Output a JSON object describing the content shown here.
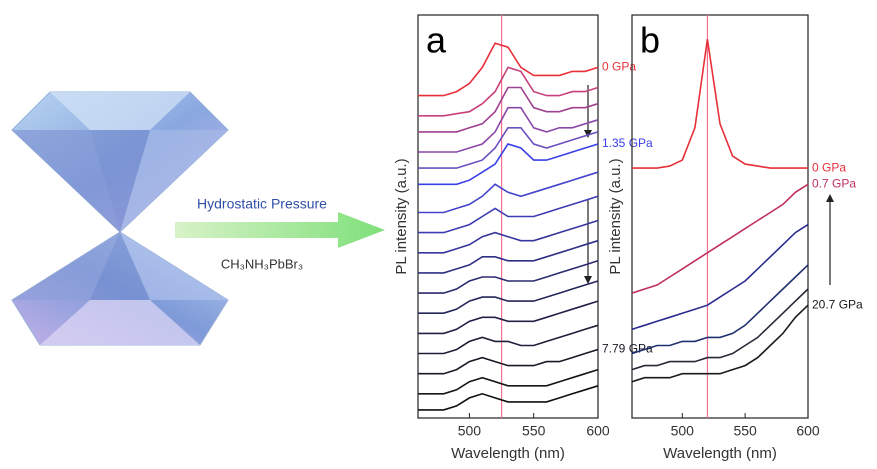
{
  "illustration": {
    "arrow_label": "Hydrostatic Pressure",
    "compound": "CH₃NH₃PbBr₃"
  },
  "chart_data": [
    {
      "type": "line",
      "panel_label": "a",
      "xlabel": "Wavelength (nm)",
      "ylabel": "PL intensity (a.u.)",
      "xlim": [
        460,
        600
      ],
      "xticks": [
        500,
        550,
        600
      ],
      "ylim": [
        0,
        100
      ],
      "vline": 525,
      "vline_color": "#f07090",
      "x": [
        460,
        470,
        480,
        490,
        500,
        510,
        520,
        530,
        540,
        550,
        560,
        570,
        580,
        590,
        600
      ],
      "series": [
        {
          "name": "0 GPa",
          "color": "#e8303a",
          "values": [
            80,
            80,
            80,
            81,
            83,
            87,
            93,
            92,
            87,
            85,
            85,
            85,
            86,
            86,
            87
          ]
        },
        {
          "color": "#c8407a",
          "values": [
            75,
            75,
            75,
            75.5,
            76,
            78,
            81,
            87,
            86,
            81,
            80,
            80,
            81,
            81,
            82
          ]
        },
        {
          "color": "#a04090",
          "values": [
            71,
            71,
            71,
            71,
            72,
            73,
            76,
            82,
            82,
            77,
            76,
            76,
            77,
            77,
            78
          ]
        },
        {
          "color": "#8a48a8",
          "values": [
            66,
            66,
            66,
            66,
            67,
            68,
            71,
            77,
            77,
            72,
            71,
            72,
            72,
            73,
            74
          ]
        },
        {
          "color": "#6a50c0",
          "values": [
            62,
            62,
            62,
            62,
            63,
            64,
            67,
            72,
            72,
            68,
            67,
            68,
            69,
            70,
            71
          ]
        },
        {
          "name": "1.35 GPa",
          "color": "#3a40e8",
          "values": [
            58,
            58,
            58,
            58,
            59,
            61,
            63,
            68,
            67,
            64,
            64,
            65,
            66,
            67,
            68
          ]
        },
        {
          "color": "#4444cc",
          "values": [
            51,
            51,
            51,
            52,
            53,
            55,
            58,
            56,
            55,
            56,
            57,
            58,
            59,
            60,
            61
          ]
        },
        {
          "color": "#3c3cb4",
          "values": [
            46,
            46,
            46,
            47,
            48,
            50,
            52,
            50,
            50,
            50,
            51,
            52,
            53,
            54,
            55
          ]
        },
        {
          "color": "#36369c",
          "values": [
            41,
            41,
            41,
            42,
            43,
            45,
            46,
            45,
            44,
            44,
            45,
            46,
            47,
            48,
            49
          ]
        },
        {
          "color": "#303084",
          "values": [
            36,
            36,
            36,
            37,
            38,
            40,
            40,
            39,
            39,
            39,
            40,
            41,
            42,
            43,
            44
          ]
        },
        {
          "color": "#2a2a6e",
          "values": [
            31,
            31,
            31,
            32,
            34,
            35,
            35,
            34,
            34,
            34,
            35,
            36,
            37,
            38,
            39
          ]
        },
        {
          "color": "#26265a",
          "values": [
            26,
            26,
            26,
            27,
            29,
            30,
            30,
            29,
            29,
            29,
            30,
            31,
            32,
            33,
            34
          ]
        },
        {
          "color": "#222246",
          "values": [
            21,
            21,
            21,
            22,
            24,
            25,
            25,
            24,
            24,
            24,
            25,
            26,
            27,
            28,
            29
          ]
        },
        {
          "color": "#1e1e36",
          "values": [
            16,
            16,
            16,
            17,
            19,
            20,
            19,
            19,
            18,
            18,
            19,
            20,
            21,
            22,
            23
          ]
        },
        {
          "name": "7.79 GPa",
          "color": "#1a1a26",
          "values": [
            11,
            11,
            11,
            12,
            14,
            15,
            14,
            13,
            13,
            13,
            14,
            14,
            15,
            16,
            17
          ]
        },
        {
          "color": "#161618",
          "values": [
            6,
            6,
            6,
            7,
            9,
            10,
            9,
            8,
            8,
            8,
            8,
            9,
            10,
            11,
            12
          ]
        },
        {
          "color": "#101010",
          "values": [
            2,
            2,
            2,
            3,
            5,
            6,
            5,
            4,
            4,
            4,
            4,
            5,
            6,
            7,
            8
          ]
        }
      ]
    },
    {
      "type": "line",
      "panel_label": "b",
      "xlabel": "Wavelength (nm)",
      "ylabel": "PL intensity (a.u.)",
      "xlim": [
        460,
        600
      ],
      "xticks": [
        500,
        550,
        600
      ],
      "ylim": [
        0,
        100
      ],
      "vline": 520,
      "vline_color": "#f07090",
      "x": [
        460,
        470,
        480,
        490,
        500,
        510,
        520,
        530,
        540,
        550,
        560,
        570,
        580,
        590,
        600
      ],
      "series": [
        {
          "name": "0 GPa",
          "color": "#e8303a",
          "values": [
            62,
            62,
            62,
            62.5,
            64,
            72,
            94,
            73,
            65,
            63,
            62.5,
            62,
            62,
            62,
            62
          ]
        },
        {
          "name": "0.7 GPa",
          "color": "#c0305a",
          "values": [
            31,
            32,
            33,
            35,
            37,
            39,
            41,
            43,
            45,
            47,
            49,
            51,
            53,
            56,
            58
          ]
        },
        {
          "color": "#2a2a90",
          "values": [
            22,
            23,
            24,
            25,
            26,
            27,
            28,
            30,
            32,
            34,
            37,
            40,
            43,
            46,
            48
          ]
        },
        {
          "color": "#203070",
          "values": [
            16,
            17,
            18,
            18,
            19,
            19,
            20,
            20,
            21,
            23,
            26,
            29,
            32,
            35,
            38
          ]
        },
        {
          "color": "#282838",
          "values": [
            12,
            13,
            13,
            14,
            14,
            14,
            15,
            15,
            16,
            18,
            20,
            23,
            26,
            29,
            32
          ]
        },
        {
          "name": "20.7 GPa",
          "color": "#1a1a1a",
          "values": [
            9,
            10,
            10,
            10,
            11,
            11,
            11,
            11,
            12,
            13,
            15,
            18,
            21,
            25,
            28
          ]
        }
      ]
    }
  ]
}
